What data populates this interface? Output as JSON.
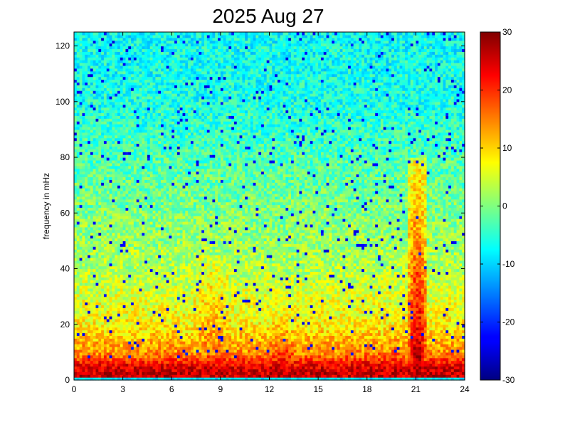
{
  "chart_data": {
    "type": "heatmap",
    "title": "2025 Aug 27",
    "xlabel": "",
    "ylabel": "frequency in mHz",
    "xlim": [
      0,
      24
    ],
    "ylim": [
      0,
      125
    ],
    "x_ticks": [
      0,
      3,
      6,
      9,
      12,
      15,
      18,
      21,
      24
    ],
    "y_ticks": [
      0,
      20,
      40,
      60,
      80,
      100,
      120
    ],
    "colorbar": {
      "colormap": "jet",
      "range": [
        -30,
        30
      ],
      "ticks": [
        30,
        20,
        10,
        0,
        -10,
        -20,
        -30
      ]
    },
    "grid": {
      "hours_per_column": 0.1667,
      "mhz_per_row": 1.0,
      "columns": 144,
      "rows": 125
    },
    "value_profile": {
      "background_level_by_frequency_mhz": [
        [
          0,
          24
        ],
        [
          2,
          26
        ],
        [
          5,
          24
        ],
        [
          10,
          14
        ],
        [
          20,
          8
        ],
        [
          40,
          3
        ],
        [
          60,
          0
        ],
        [
          80,
          -3
        ],
        [
          100,
          -6
        ],
        [
          125,
          -7
        ]
      ],
      "noise_amplitude": 5,
      "scattered_low_outliers": -25
    },
    "features": [
      {
        "label": "low-frequency band",
        "hours": [
          0,
          24
        ],
        "mhz": [
          2,
          8
        ],
        "value": 28
      },
      {
        "label": "activity 7-10 h",
        "hours": [
          7,
          10
        ],
        "mhz": [
          5,
          45
        ],
        "peak_value": 18
      },
      {
        "label": "activity 11.5-14 h",
        "hours": [
          11.5,
          14
        ],
        "mhz": [
          5,
          25
        ],
        "peak_value": 25
      },
      {
        "label": "activity 19-20.5 h",
        "hours": [
          19,
          20.5
        ],
        "mhz": [
          2,
          20
        ],
        "peak_value": 28
      },
      {
        "label": "strong event near 21 h",
        "hours": [
          20.5,
          21.7
        ],
        "mhz": [
          2,
          80
        ],
        "peak_value": 30
      },
      {
        "label": "activity 22.5-24 h",
        "hours": [
          22.5,
          24
        ],
        "mhz": [
          2,
          15
        ],
        "peak_value": 22
      }
    ]
  }
}
